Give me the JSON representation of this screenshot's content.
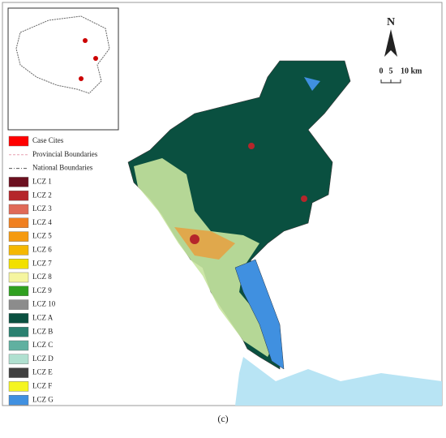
{
  "north_label": "N",
  "scale": {
    "labels": [
      "0",
      "5",
      "10 km"
    ]
  },
  "legend": {
    "items": [
      {
        "label": "Case Cites",
        "color": "#ff0000",
        "kind": "box"
      },
      {
        "label": "Provincial Boundaries",
        "color": "#e8a0b0",
        "kind": "dash"
      },
      {
        "label": "National Boundaries",
        "color": "#555555",
        "kind": "dashdot"
      },
      {
        "label": "LCZ 1",
        "color": "#6b0f1f",
        "kind": "box"
      },
      {
        "label": "LCZ 2",
        "color": "#b5262b",
        "kind": "box"
      },
      {
        "label": "LCZ 3",
        "color": "#e06a58",
        "kind": "box"
      },
      {
        "label": "LCZ 4",
        "color": "#f08020",
        "kind": "box"
      },
      {
        "label": "LCZ 5",
        "color": "#f59a10",
        "kind": "box"
      },
      {
        "label": "LCZ 6",
        "color": "#f5b800",
        "kind": "box"
      },
      {
        "label": "LCZ 7",
        "color": "#f2e000",
        "kind": "box"
      },
      {
        "label": "LCZ 8",
        "color": "#f5f5a0",
        "kind": "box"
      },
      {
        "label": "LCZ 9",
        "color": "#30a020",
        "kind": "box"
      },
      {
        "label": "LCZ 10",
        "color": "#8c8c8c",
        "kind": "box"
      },
      {
        "label": "LCZ A",
        "color": "#0a5040",
        "kind": "box"
      },
      {
        "label": "LCZ B",
        "color": "#2a8070",
        "kind": "box"
      },
      {
        "label": "LCZ C",
        "color": "#60b0a0",
        "kind": "box"
      },
      {
        "label": "LCZ D",
        "color": "#b0e0d0",
        "kind": "box"
      },
      {
        "label": "LCZ E",
        "color": "#404040",
        "kind": "box"
      },
      {
        "label": "LCZ F",
        "color": "#f5f520",
        "kind": "box"
      },
      {
        "label": "LCZ G",
        "color": "#4090e0",
        "kind": "box"
      }
    ]
  },
  "caption": "(c)"
}
